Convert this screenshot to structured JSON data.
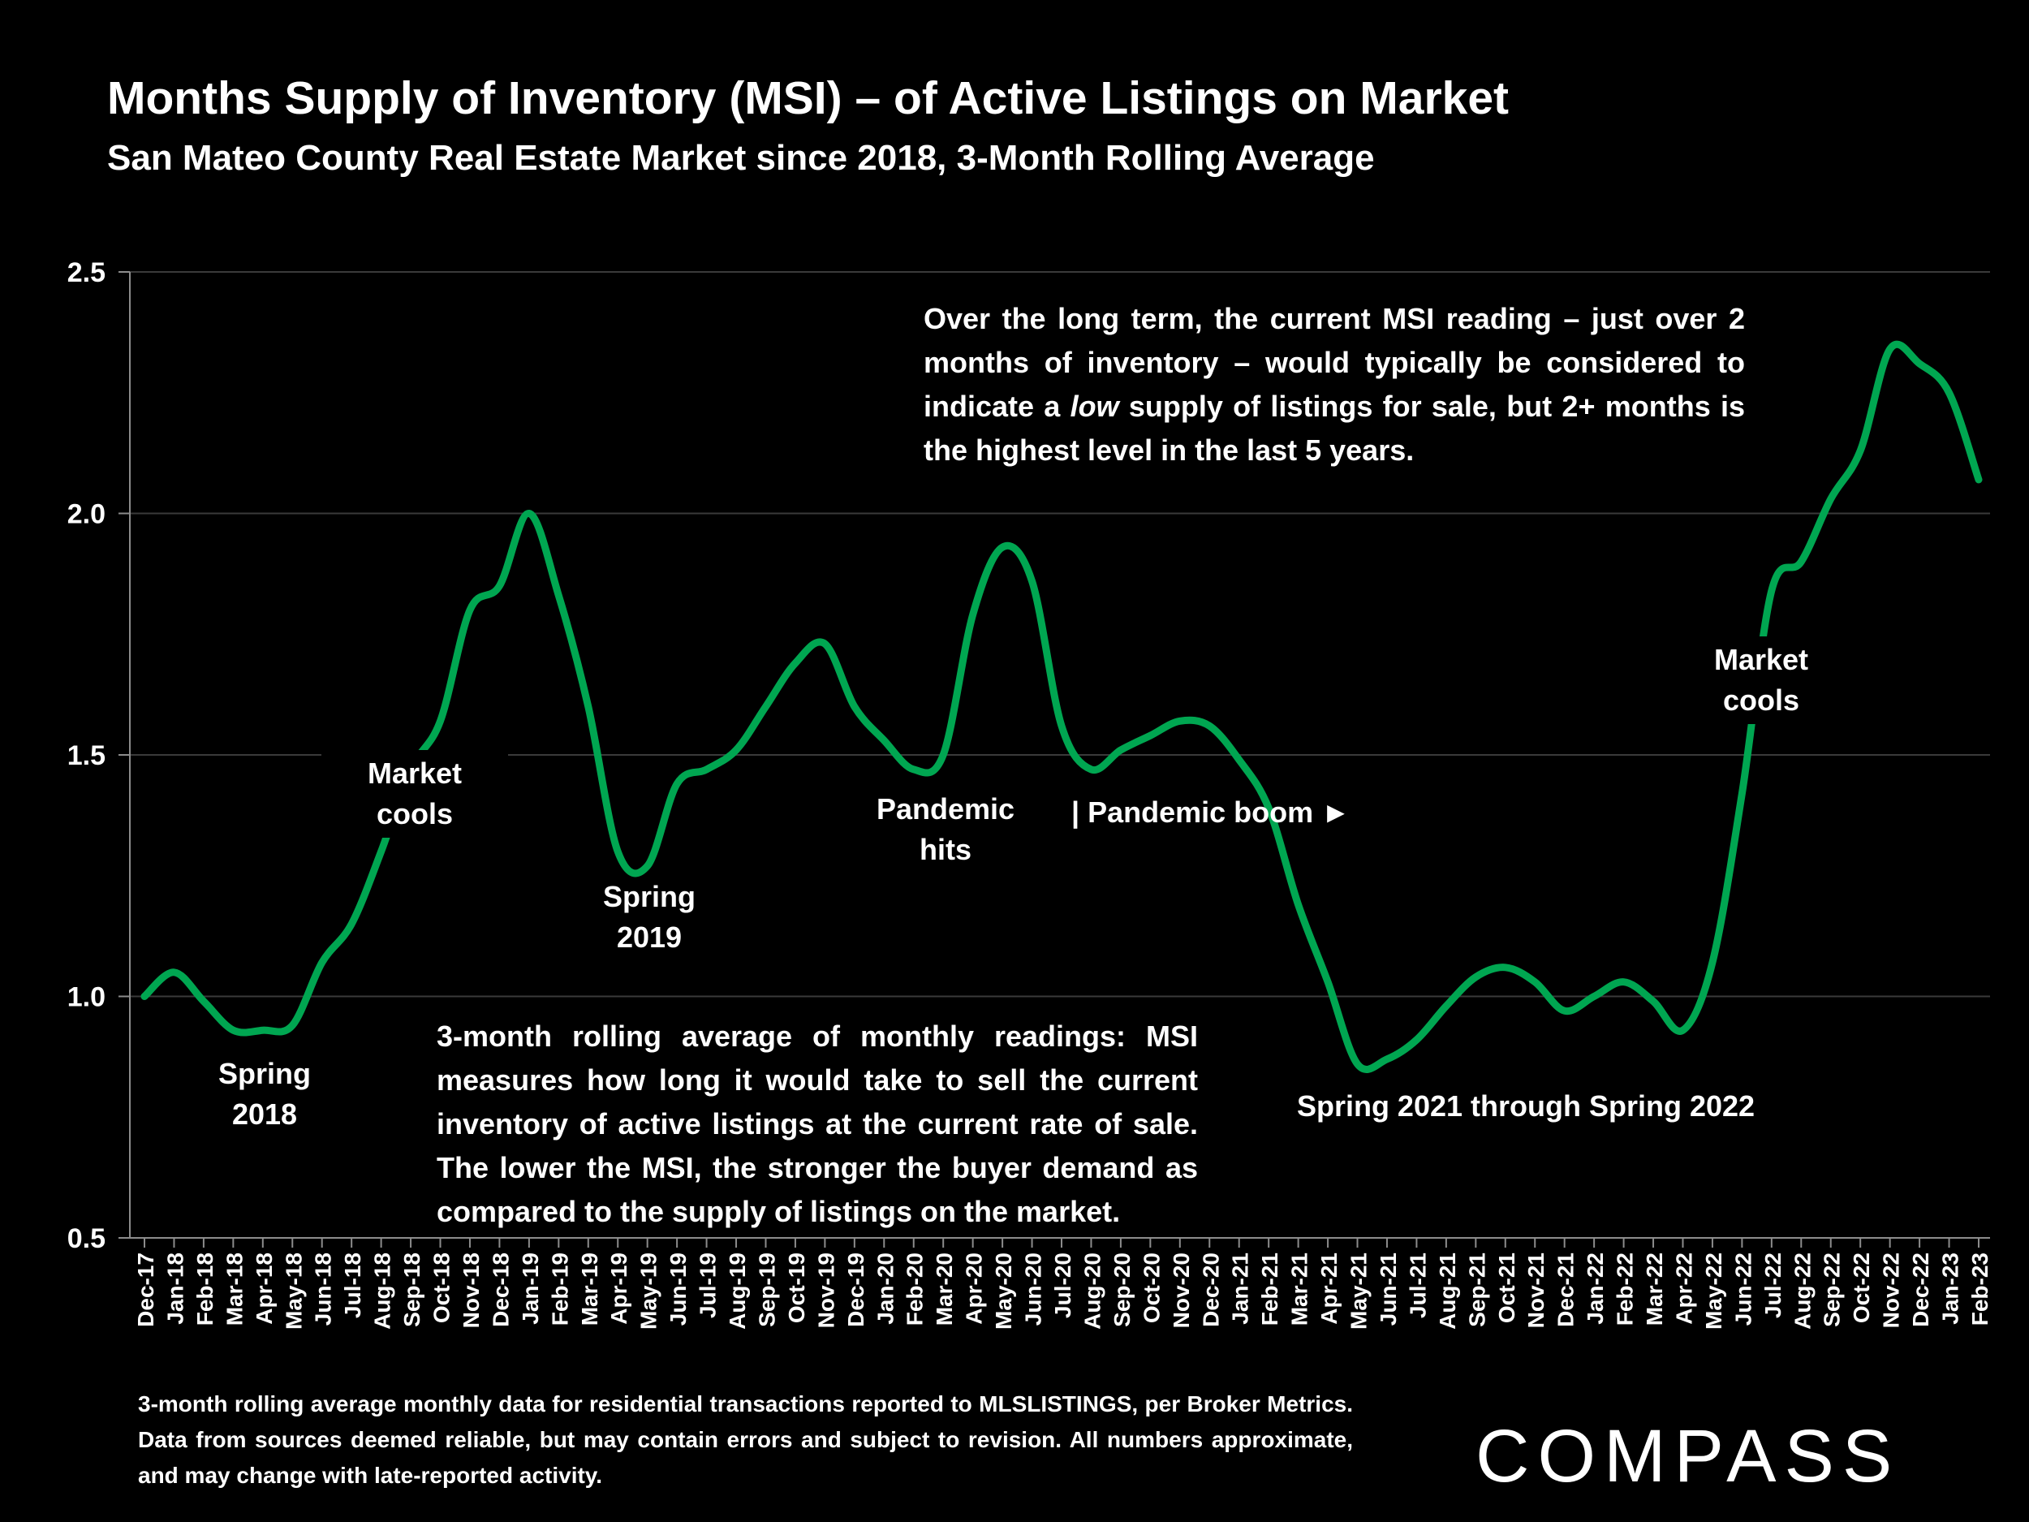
{
  "header": {
    "title": "Months Supply of Inventory (MSI) – of Active Listings on Market",
    "subtitle": "San Mateo County Real Estate Market since 2018, 3-Month Rolling Average"
  },
  "annotations": {
    "spring_2018": [
      "Spring",
      "2018"
    ],
    "market_cools_1": [
      "Market",
      "cools"
    ],
    "spring_2019": [
      "Spring",
      "2019"
    ],
    "pandemic_hits": [
      "Pandemic",
      "hits"
    ],
    "pandemic_boom": "| Pandemic boom ►",
    "spring_2021_2022": "Spring 2021 through Spring 2022",
    "market_cools_2": [
      "Market",
      "cools"
    ],
    "long_term_note": {
      "before": "Over the long term, the current MSI reading – just over 2 months of inventory – would typically be considered to indicate a ",
      "emphasis": "low",
      "after": " supply of listings for sale, but 2+ months is the highest level in the last 5 years."
    },
    "explanation": "3-month rolling average of monthly readings: MSI measures how long it would take to sell the current inventory of active listings at the current rate of sale. The lower the MSI, the stronger the buyer demand as compared to the supply of listings on the market."
  },
  "footnote": "3-month rolling average monthly data for residential transactions reported to MLSLISTINGS, per Broker Metrics. Data from sources deemed reliable, but may contain errors and subject to revision. All numbers approximate, and may change with late-reported activity.",
  "logo_text": "COMPASS",
  "chart_data": {
    "type": "line",
    "line_color": "#00a651",
    "grid": true,
    "ylim": [
      0.5,
      2.5
    ],
    "yticks": [
      "0.5",
      "1.0",
      "1.5",
      "2.0",
      "2.5"
    ],
    "categories": [
      "Dec-17",
      "Jan-18",
      "Feb-18",
      "Mar-18",
      "Apr-18",
      "May-18",
      "Jun-18",
      "Jul-18",
      "Aug-18",
      "Sep-18",
      "Oct-18",
      "Nov-18",
      "Dec-18",
      "Jan-19",
      "Feb-19",
      "Mar-19",
      "Apr-19",
      "May-19",
      "Jun-19",
      "Jul-19",
      "Aug-19",
      "Sep-19",
      "Oct-19",
      "Nov-19",
      "Dec-19",
      "Jan-20",
      "Feb-20",
      "Mar-20",
      "Apr-20",
      "May-20",
      "Jun-20",
      "Jul-20",
      "Aug-20",
      "Sep-20",
      "Oct-20",
      "Nov-20",
      "Dec-20",
      "Jan-21",
      "Feb-21",
      "Mar-21",
      "Apr-21",
      "May-21",
      "Jun-21",
      "Jul-21",
      "Aug-21",
      "Sep-21",
      "Oct-21",
      "Nov-21",
      "Dec-21",
      "Jan-22",
      "Feb-22",
      "Mar-22",
      "Apr-22",
      "May-22",
      "Jun-22",
      "Jul-22",
      "Aug-22",
      "Sep-22",
      "Oct-22",
      "Nov-22",
      "Dec-22",
      "Jan-23",
      "Feb-23"
    ],
    "values": [
      1.0,
      1.05,
      0.99,
      0.93,
      0.93,
      0.94,
      1.07,
      1.15,
      1.3,
      1.47,
      1.57,
      1.8,
      1.85,
      2.0,
      1.83,
      1.6,
      1.3,
      1.27,
      1.44,
      1.47,
      1.51,
      1.6,
      1.69,
      1.73,
      1.6,
      1.53,
      1.47,
      1.5,
      1.79,
      1.93,
      1.86,
      1.56,
      1.47,
      1.51,
      1.54,
      1.57,
      1.56,
      1.49,
      1.39,
      1.19,
      1.03,
      0.86,
      0.87,
      0.91,
      0.98,
      1.04,
      1.06,
      1.03,
      0.97,
      1.0,
      1.03,
      0.99,
      0.93,
      1.07,
      1.42,
      1.84,
      1.9,
      2.03,
      2.13,
      2.34,
      2.31,
      2.25,
      2.07
    ]
  }
}
